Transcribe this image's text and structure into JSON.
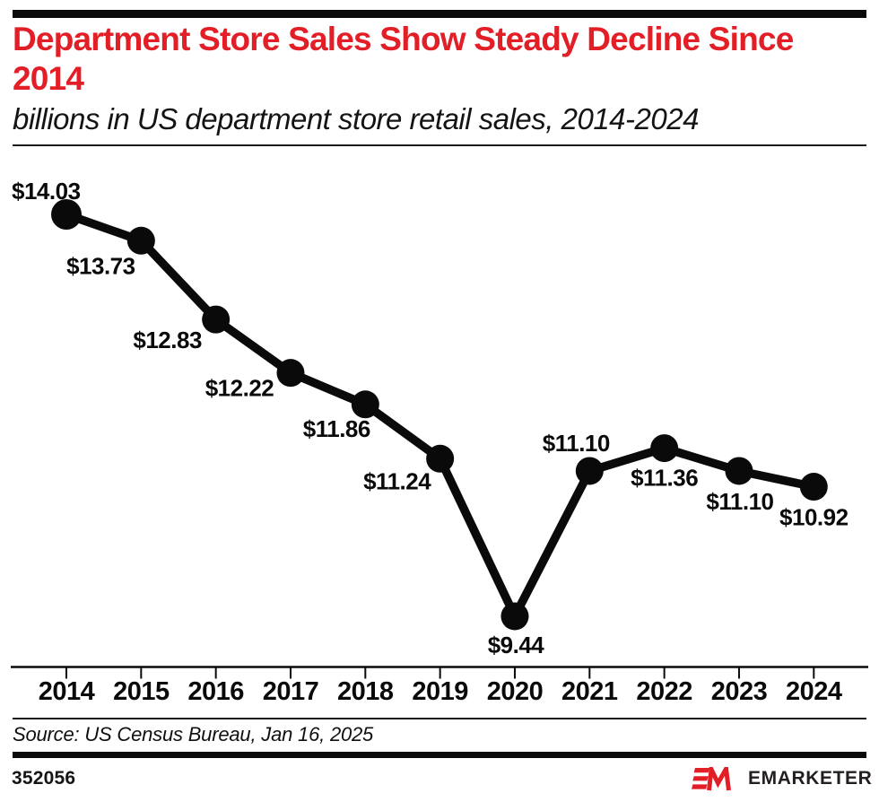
{
  "page": {
    "title": "Department Store Sales Show Steady Decline Since 2014",
    "subtitle": "billions in US department store retail sales, 2014-2024",
    "source": "Source: US Census Bureau, Jan 16, 2025",
    "chart_id": "352056",
    "brand": "EMARKETER",
    "colors": {
      "accent_red": "#e21e26",
      "ink": "#0a0a0a",
      "wordmark_ink": "#231f20"
    }
  },
  "chart_data": {
    "type": "line",
    "title": "Department Store Sales Show Steady Decline Since 2014",
    "subtitle": "billions in US department store retail sales, 2014-2024",
    "source": "Source: US Census Bureau, Jan 16, 2025",
    "categories": [
      "2014",
      "2015",
      "2016",
      "2017",
      "2018",
      "2019",
      "2020",
      "2021",
      "2022",
      "2023",
      "2024"
    ],
    "values": [
      14.03,
      13.73,
      12.83,
      12.22,
      11.86,
      11.24,
      9.44,
      11.1,
      11.36,
      11.1,
      10.92
    ],
    "point_labels": [
      "$14.03",
      "$13.73",
      "$12.83",
      "$12.22",
      "$11.86",
      "$11.24",
      "$9.44",
      "$11.10",
      "$11.36",
      "$11.10",
      "$10.92"
    ],
    "series_name": "US department store retail sales (billions)",
    "xlabel": "",
    "ylabel": "billions of US dollars",
    "ylim": [
      9,
      14.5
    ],
    "grid": false,
    "legend": "none",
    "markers": true,
    "line_color": "#0a0a0a"
  }
}
